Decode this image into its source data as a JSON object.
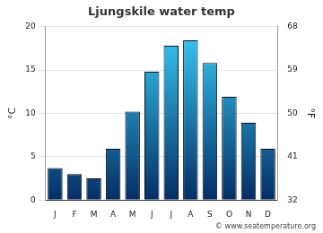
{
  "chart_data": {
    "type": "bar",
    "title": "Ljungskile water temp",
    "y_label": "°C",
    "y2_label": "°F",
    "categories": [
      "J",
      "F",
      "M",
      "A",
      "M",
      "J",
      "J",
      "A",
      "S",
      "O",
      "N",
      "D"
    ],
    "values": [
      3.7,
      3.0,
      2.5,
      5.9,
      10.2,
      14.8,
      17.8,
      18.4,
      15.8,
      11.9,
      8.9,
      5.9
    ],
    "color": "#38cdf8",
    "ylim": [
      0,
      20
    ],
    "yticks": [
      0,
      5,
      10,
      15,
      20
    ],
    "y2lim": [
      32,
      68
    ],
    "y2ticks": [
      32,
      41,
      50,
      59,
      68
    ],
    "grid": true,
    "annotations": [
      "© www.seatemperature.org"
    ]
  }
}
